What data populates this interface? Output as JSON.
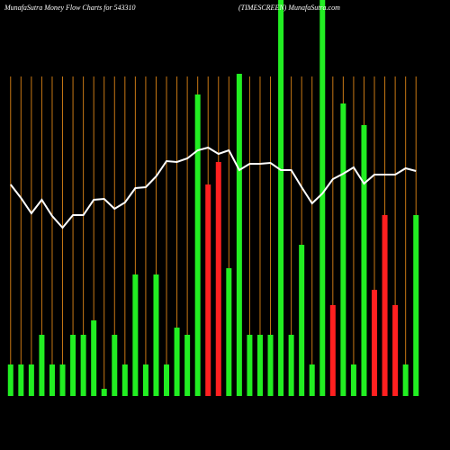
{
  "chart_data": {
    "type": "bar",
    "title": "MunafaSutra  Money Flow  Charts for 543310",
    "subtitle": "(TIMESCREEN) MunafaSutra.com",
    "categories": [
      null,
      null,
      null,
      null,
      null,
      null,
      null,
      null,
      null,
      null,
      null,
      null,
      null,
      null,
      null,
      null,
      null,
      null,
      null,
      null,
      null,
      null,
      null,
      null,
      null,
      null,
      null,
      null,
      null,
      null,
      null,
      null,
      null,
      null,
      null,
      null,
      null,
      null,
      null,
      null
    ],
    "ylim": [
      0,
      440
    ],
    "grid": true,
    "grid_color": "#c87814",
    "series": [
      {
        "kind": "bar",
        "values": [
          35,
          35,
          35,
          68,
          35,
          35,
          68,
          68,
          84,
          8,
          68,
          35,
          135,
          35,
          135,
          35,
          76,
          68,
          335,
          235,
          260,
          142,
          358,
          68,
          68,
          68,
          440,
          68,
          168,
          35,
          440,
          101,
          325,
          35,
          301,
          118,
          201,
          101,
          35,
          201
        ],
        "colors": [
          "#22ee22",
          "#22ee22",
          "#22ee22",
          "#22ee22",
          "#22ee22",
          "#22ee22",
          "#22ee22",
          "#22ee22",
          "#22ee22",
          "#22ee22",
          "#22ee22",
          "#22ee22",
          "#22ee22",
          "#22ee22",
          "#22ee22",
          "#22ee22",
          "#22ee22",
          "#22ee22",
          "#22ee22",
          "#ff2020",
          "#ff2020",
          "#22ee22",
          "#22ee22",
          "#22ee22",
          "#22ee22",
          "#22ee22",
          "#22ee22",
          "#22ee22",
          "#22ee22",
          "#22ee22",
          "#22ee22",
          "#ff2020",
          "#22ee22",
          "#22ee22",
          "#22ee22",
          "#ff2020",
          "#ff2020",
          "#ff2020",
          "#22ee22",
          "#22ee22"
        ]
      },
      {
        "kind": "line",
        "color": "#ffffff",
        "values": [
          235,
          220,
          203,
          218,
          200,
          187,
          201,
          201,
          218,
          219,
          208,
          215,
          231,
          232,
          244,
          261,
          260,
          264,
          273,
          276,
          269,
          273,
          251,
          258,
          258,
          259,
          251,
          251,
          232,
          214,
          225,
          241,
          247,
          254,
          236,
          246,
          246,
          246,
          253,
          250
        ]
      }
    ]
  }
}
